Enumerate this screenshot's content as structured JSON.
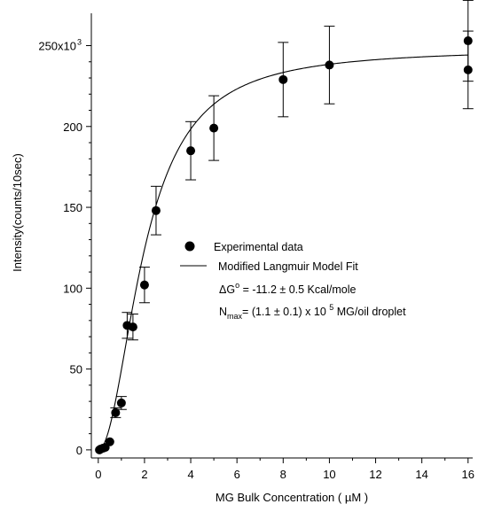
{
  "chart_data": {
    "type": "scatter",
    "xlabel": "MG Bulk Concentration ( µM )",
    "ylabel": "Intensity(counts/10sec)",
    "xlim": [
      -0.3,
      16.2
    ],
    "ylim": [
      -5,
      270
    ],
    "x_ticks": [
      0,
      2,
      4,
      6,
      8,
      10,
      12,
      14,
      16
    ],
    "x_tick_labels": [
      "0",
      "2",
      "4",
      "6",
      "8",
      "10",
      "12",
      "14",
      "16"
    ],
    "y_ticks": [
      0,
      50,
      100,
      150,
      200,
      250
    ],
    "y_tick_labels": [
      "0",
      "50",
      "100",
      "150",
      "200",
      "250x10"
    ],
    "y_tick_top_exponent": "3",
    "grid": false,
    "legend_position": "center-right",
    "series": [
      {
        "name": "Experimental data",
        "marker": "filled-circle",
        "color": "#000000",
        "points": [
          {
            "x": 0.05,
            "y": 0,
            "err": 1
          },
          {
            "x": 0.1,
            "y": 0.5,
            "err": 1
          },
          {
            "x": 0.2,
            "y": 1,
            "err": 1
          },
          {
            "x": 0.3,
            "y": 1.5,
            "err": 1
          },
          {
            "x": 0.5,
            "y": 5,
            "err": 2
          },
          {
            "x": 0.75,
            "y": 23,
            "err": 3
          },
          {
            "x": 1.0,
            "y": 29,
            "err": 4
          },
          {
            "x": 1.25,
            "y": 77,
            "err": 8
          },
          {
            "x": 1.5,
            "y": 76,
            "err": 8
          },
          {
            "x": 2.0,
            "y": 102,
            "err": 11
          },
          {
            "x": 2.5,
            "y": 148,
            "err": 15
          },
          {
            "x": 4.0,
            "y": 185,
            "err": 18
          },
          {
            "x": 5.0,
            "y": 199,
            "err": 20
          },
          {
            "x": 8.0,
            "y": 229,
            "err": 23
          },
          {
            "x": 10.0,
            "y": 238,
            "err": 24
          },
          {
            "x": 16.0,
            "y": 253,
            "err": 25
          },
          {
            "x": 16.0,
            "y": 235,
            "err": 24
          }
        ]
      },
      {
        "name": "Modified Langmuir Model Fit",
        "marker": "line",
        "color": "#000000",
        "fit": {
          "ymax": 248,
          "x_half": 2.0,
          "hill": 2.0
        },
        "x_range": [
          0,
          16
        ]
      }
    ],
    "annotations": [
      {
        "prefix": "ΔG",
        "sup": "o",
        "text": " = -11.2 ± 0.5 Kcal/mole"
      },
      {
        "prefix": "N",
        "sub": "max",
        "text1": "= (1.1 ± 0.1) x 10 ",
        "sup": "5",
        "text2": " MG/oil droplet"
      }
    ]
  }
}
